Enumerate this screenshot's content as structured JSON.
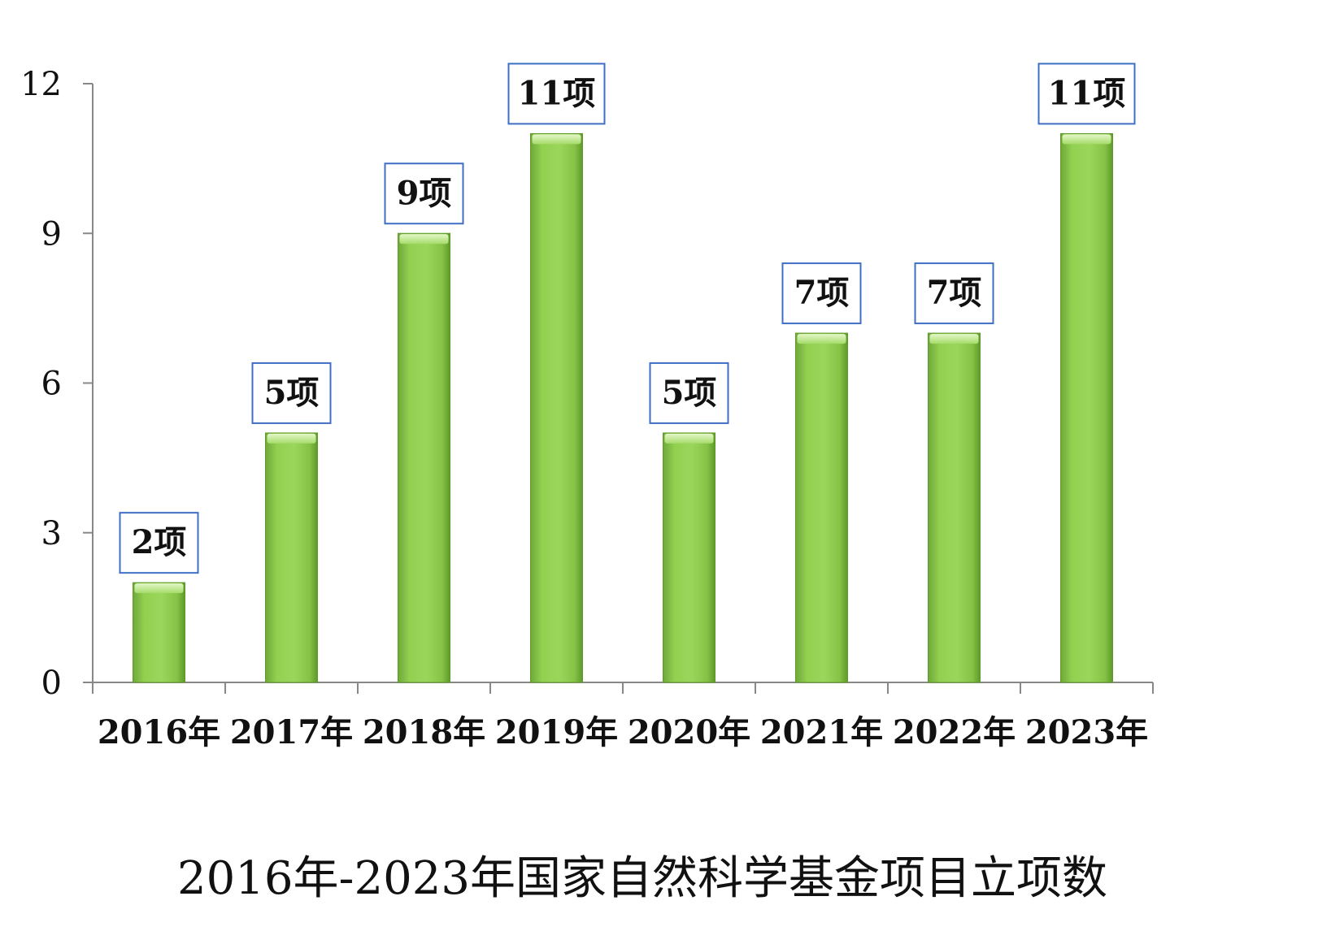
{
  "chart_data": {
    "type": "bar",
    "title": "2016年-2023年国家自然科学基金项目立项数",
    "xlabel": "",
    "ylabel": "",
    "categories": [
      "2016年",
      "2017年",
      "2018年",
      "2019年",
      "2020年",
      "2021年",
      "2022年",
      "2023年"
    ],
    "values": [
      2,
      5,
      9,
      11,
      5,
      7,
      7,
      11
    ],
    "data_labels": [
      "2项",
      "5项",
      "9项",
      "11项",
      "5项",
      "7项",
      "7项",
      "11项"
    ],
    "yticks": [
      "0",
      "3",
      "6",
      "9",
      "12"
    ],
    "ylim": [
      0,
      12
    ],
    "grid": false,
    "legend": "none",
    "colors": {
      "bar": "#92D050",
      "bar_dark": "#5E9A2A",
      "bar_light": "#C8EC9A",
      "axis": "#888888",
      "label_border": "#3F6FC4"
    }
  }
}
